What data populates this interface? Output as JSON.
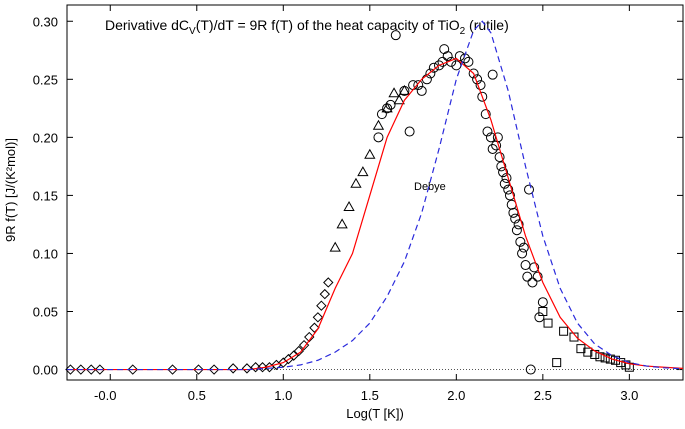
{
  "chart_data": {
    "type": "scatter",
    "title": [
      "Derivative dC",
      "V",
      "(T)/dT = 9R f(T) of the heat capacity of TiO",
      "2",
      " (rutile)"
    ],
    "x_label": "Log(T [K])",
    "y_label": "9R f(T) [J/(K²mol)]",
    "annotation": "Debye",
    "xlim": [
      -0.25,
      3.31
    ],
    "ylim": [
      -0.009,
      0.314
    ],
    "xticks": [
      {
        "value": 0,
        "label": "-0.0"
      },
      0.5,
      {
        "value": 1,
        "label": "1.0"
      },
      1.5,
      {
        "value": 2,
        "label": "2.0"
      },
      2.5,
      {
        "value": 3,
        "label": "3.0"
      }
    ],
    "yticks": [
      {
        "value": 0,
        "label": "0.00"
      },
      0.05,
      {
        "value": 0.1,
        "label": "0.10"
      },
      0.15,
      {
        "value": 0.2,
        "label": "0.20"
      },
      0.25,
      {
        "value": 0.3,
        "label": "0.30"
      }
    ],
    "series": [
      {
        "marker": "diamond",
        "color": "#000000",
        "x": [
          -0.23,
          -0.17,
          -0.11,
          -0.06,
          0.13,
          0.36,
          0.51,
          0.6,
          0.71,
          0.79,
          0.84,
          0.88,
          0.92,
          0.96,
          1.0,
          1.03,
          1.06,
          1.09,
          1.12,
          1.15,
          1.18,
          1.2,
          1.22,
          1.24,
          1.26
        ],
        "values": [
          0,
          0,
          0,
          0,
          0,
          0,
          0,
          0,
          0.001,
          0.001,
          0.002,
          0.002,
          0.002,
          0.004,
          0.006,
          0.009,
          0.012,
          0.016,
          0.021,
          0.028,
          0.036,
          0.045,
          0.055,
          0.065,
          0.075
        ]
      },
      {
        "marker": "triangle",
        "color": "#000000",
        "x": [
          1.3,
          1.34,
          1.38,
          1.42,
          1.46,
          1.5,
          1.55,
          1.6,
          1.64,
          1.67,
          1.7
        ],
        "values": [
          0.105,
          0.125,
          0.14,
          0.16,
          0.17,
          0.185,
          0.21,
          0.225,
          0.238,
          0.232,
          0.24
        ]
      },
      {
        "marker": "circle",
        "color": "#000000",
        "x": [
          1.55,
          1.57,
          1.6,
          1.62,
          1.65,
          1.7,
          1.73,
          1.75,
          1.78,
          1.8,
          1.83,
          1.85,
          1.87,
          1.9,
          1.92,
          1.93,
          1.95,
          1.97,
          2.0,
          2.02,
          2.05,
          2.07,
          2.1,
          2.12,
          2.14,
          2.15,
          2.17,
          2.18,
          2.2,
          2.21,
          2.23,
          2.24,
          2.25,
          2.26,
          2.27,
          2.28,
          2.29,
          2.3,
          2.31,
          2.32,
          2.33,
          2.34,
          2.35,
          2.36,
          2.37,
          2.38,
          2.39,
          2.4,
          2.41,
          2.42,
          2.43,
          2.44,
          2.45,
          2.47,
          2.48,
          2.5,
          2.21
        ],
        "values": [
          0.2,
          0.22,
          0.225,
          0.228,
          0.288,
          0.24,
          0.205,
          0.245,
          0.245,
          0.24,
          0.25,
          0.255,
          0.26,
          0.262,
          0.265,
          0.276,
          0.27,
          0.265,
          0.262,
          0.27,
          0.268,
          0.265,
          0.255,
          0.25,
          0.245,
          0.235,
          0.22,
          0.205,
          0.2,
          0.19,
          0.193,
          0.2,
          0.183,
          0.175,
          0.17,
          0.16,
          0.165,
          0.155,
          0.15,
          0.142,
          0.135,
          0.13,
          0.12,
          0.125,
          0.11,
          0.1,
          0.105,
          0.09,
          0.08,
          0.155,
          0,
          0.075,
          0.088,
          0.08,
          0.045,
          0.058,
          0.254
        ]
      },
      {
        "marker": "square",
        "color": "#000000",
        "x": [
          2.5,
          2.53,
          2.58,
          2.62,
          2.68,
          2.72,
          2.76,
          2.8,
          2.83,
          2.86,
          2.89,
          2.92,
          2.95,
          2.98,
          3.0
        ],
        "values": [
          0.05,
          0.04,
          0.006,
          0.033,
          0.028,
          0.018,
          0.015,
          0.013,
          0.011,
          0.01,
          0.009,
          0.008,
          0.006,
          0.004,
          0.002
        ]
      },
      {
        "marker": "line",
        "color": "#ff0000",
        "dash": false,
        "x": [
          -0.25,
          0.8,
          0.9,
          1.0,
          1.1,
          1.2,
          1.3,
          1.4,
          1.5,
          1.6,
          1.7,
          1.8,
          1.9,
          2.0,
          2.1,
          2.2,
          2.3,
          2.4,
          2.5,
          2.6,
          2.7,
          2.8,
          2.9,
          3.0,
          3.1,
          3.2,
          3.31
        ],
        "values": [
          0,
          0,
          0.002,
          0.006,
          0.015,
          0.035,
          0.07,
          0.1,
          0.15,
          0.2,
          0.232,
          0.25,
          0.262,
          0.268,
          0.255,
          0.215,
          0.165,
          0.115,
          0.075,
          0.045,
          0.027,
          0.016,
          0.009,
          0.005,
          0.003,
          0.002,
          0.001
        ]
      },
      {
        "marker": "line",
        "color": "#2a2adc",
        "dash": true,
        "x": [
          -0.25,
          0.8,
          1.0,
          1.1,
          1.2,
          1.3,
          1.4,
          1.5,
          1.6,
          1.7,
          1.8,
          1.9,
          2.0,
          2.1,
          2.15,
          2.2,
          2.3,
          2.4,
          2.5,
          2.6,
          2.7,
          2.8,
          2.9,
          3.0,
          3.1,
          3.2,
          3.31
        ],
        "values": [
          0,
          0,
          0.002,
          0.004,
          0.008,
          0.015,
          0.025,
          0.04,
          0.063,
          0.093,
          0.135,
          0.19,
          0.25,
          0.292,
          0.3,
          0.29,
          0.24,
          0.175,
          0.115,
          0.07,
          0.04,
          0.022,
          0.012,
          0.006,
          0.003,
          0.0015,
          0.0007
        ]
      }
    ]
  }
}
